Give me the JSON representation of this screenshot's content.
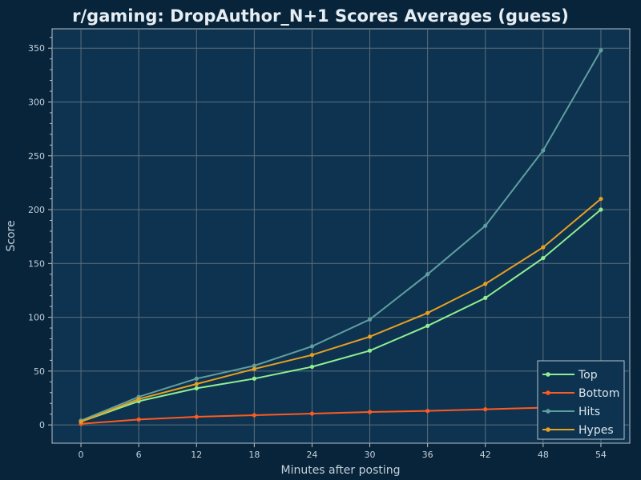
{
  "chart_data": {
    "type": "line",
    "title": "r/gaming: DropAuthor_N+1 Scores Averages (guess)",
    "xlabel": "Minutes after posting",
    "ylabel": "Score",
    "x": [
      0,
      6,
      12,
      18,
      24,
      30,
      36,
      42,
      48,
      54
    ],
    "xlim": [
      -3,
      57
    ],
    "ylim": [
      -17,
      368
    ],
    "xticks": [
      "0",
      "6",
      "12",
      "18",
      "24",
      "30",
      "36",
      "42",
      "48",
      "54"
    ],
    "yticks": [
      "0",
      "50",
      "100",
      "150",
      "200",
      "250",
      "300",
      "350"
    ],
    "grid": true,
    "legend_position": "bottom-right",
    "series": [
      {
        "name": "Top",
        "color": "#90ee90",
        "values": [
          3,
          22,
          34,
          43,
          54,
          69,
          92,
          118,
          155,
          200
        ]
      },
      {
        "name": "Bottom",
        "color": "#ff5a1f",
        "values": [
          1,
          5,
          7.5,
          9,
          10.5,
          12,
          13,
          14.5,
          16,
          18
        ]
      },
      {
        "name": "Hits",
        "color": "#5f9ea0",
        "values": [
          4,
          26,
          43,
          55,
          73,
          98,
          140,
          185,
          255,
          348
        ]
      },
      {
        "name": "Hypes",
        "color": "#e8a020",
        "values": [
          3,
          24,
          38,
          52,
          65,
          82,
          104,
          131,
          165,
          210
        ]
      }
    ]
  }
}
